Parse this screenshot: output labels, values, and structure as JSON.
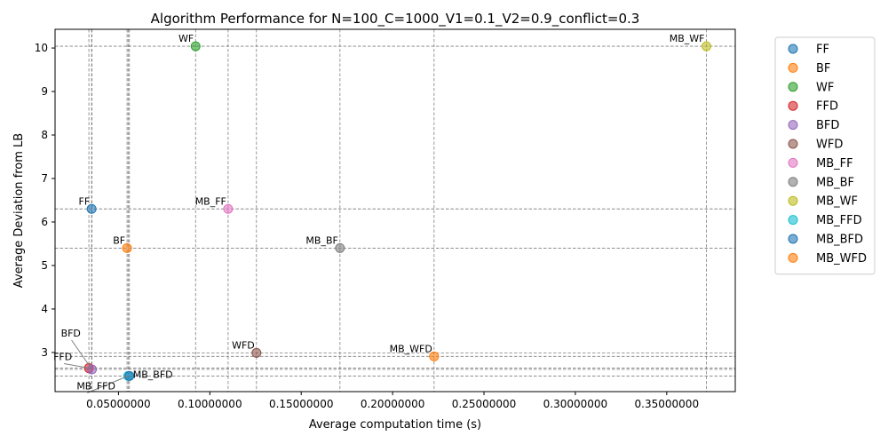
{
  "chart_data": {
    "type": "scatter",
    "title": "Algorithm Performance for N=100_C=1000_V1=0.1_V2=0.9_conflict=0.3",
    "xlabel": "Average computation time (s)",
    "ylabel": "Average Deviation from LB",
    "xlim": [
      0.0153,
      0.3875
    ],
    "ylim": [
      2.1,
      10.43
    ],
    "xticks": [
      0.05,
      0.1,
      0.15,
      0.2,
      0.25,
      0.3,
      0.35
    ],
    "xtick_labels": [
      "0.05000000",
      "0.10000000",
      "0.15000000",
      "0.20000000",
      "0.25000000",
      "0.30000000",
      "0.35000000"
    ],
    "yticks": [
      3,
      4,
      5,
      6,
      7,
      8,
      9,
      10
    ],
    "ytick_labels": [
      "3",
      "4",
      "5",
      "6",
      "7",
      "8",
      "9",
      "10"
    ],
    "grid": "reference lines through each point",
    "legend_position": "outside right",
    "series": [
      {
        "name": "FF",
        "x": 0.0353,
        "y": 6.3,
        "color": "#1f77b4"
      },
      {
        "name": "BF",
        "x": 0.0547,
        "y": 5.4,
        "color": "#ff7f0e"
      },
      {
        "name": "WF",
        "x": 0.0922,
        "y": 10.04,
        "color": "#2ca02c"
      },
      {
        "name": "FFD",
        "x": 0.0338,
        "y": 2.64,
        "color": "#d62728"
      },
      {
        "name": "BFD",
        "x": 0.0355,
        "y": 2.61,
        "color": "#9467bd"
      },
      {
        "name": "WFD",
        "x": 0.1255,
        "y": 2.99,
        "color": "#8c564b"
      },
      {
        "name": "MB_FF",
        "x": 0.11,
        "y": 6.3,
        "color": "#e377c2"
      },
      {
        "name": "MB_BF",
        "x": 0.1712,
        "y": 5.4,
        "color": "#7f7f7f"
      },
      {
        "name": "MB_WF",
        "x": 0.3717,
        "y": 10.04,
        "color": "#bcbd22"
      },
      {
        "name": "MB_FFD",
        "x": 0.0553,
        "y": 2.46,
        "color": "#17becf"
      },
      {
        "name": "MB_BFD",
        "x": 0.056,
        "y": 2.46,
        "color": "#1f77b4"
      },
      {
        "name": "MB_WFD",
        "x": 0.2227,
        "y": 2.91,
        "color": "#ff7f0e"
      }
    ],
    "annotations": [
      {
        "text": "FF",
        "series": "FF"
      },
      {
        "text": "BF",
        "series": "BF"
      },
      {
        "text": "WF",
        "series": "WF"
      },
      {
        "text": "FFD",
        "series": "FFD"
      },
      {
        "text": "BFD",
        "series": "BFD"
      },
      {
        "text": "WFD",
        "series": "WFD"
      },
      {
        "text": "MB_FF",
        "series": "MB_FF"
      },
      {
        "text": "MB_BF",
        "series": "MB_BF"
      },
      {
        "text": "MB_WF",
        "series": "MB_WF"
      },
      {
        "text": "MB_FFD",
        "series": "MB_FFD"
      },
      {
        "text": "MB_BFD",
        "series": "MB_BFD"
      },
      {
        "text": "MB_WFD",
        "series": "MB_WFD"
      }
    ]
  }
}
